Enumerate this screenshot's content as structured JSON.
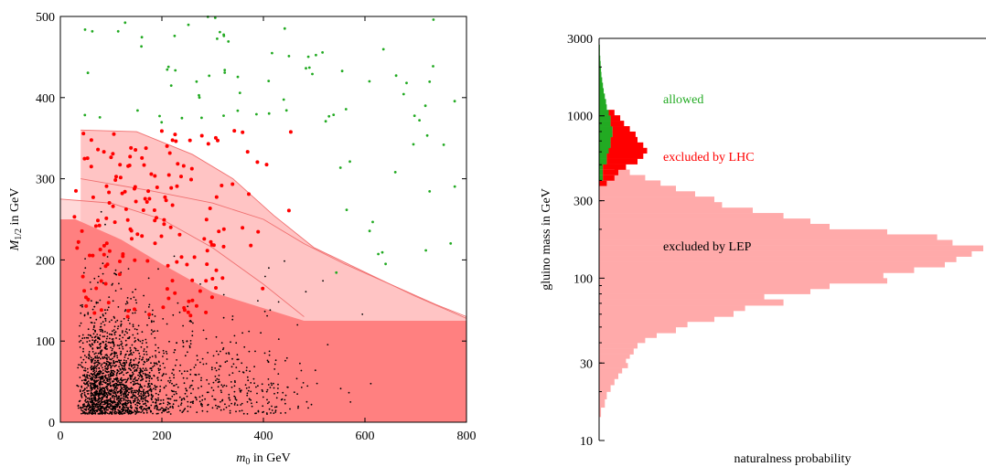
{
  "chart_data": [
    {
      "type": "scatter",
      "x_axis": {
        "label_italic": "m",
        "label_sub": "0",
        "label_rest": " in GeV",
        "range": [
          0,
          800
        ],
        "ticks": [
          0,
          200,
          400,
          600,
          800
        ]
      },
      "y_axis": {
        "label_italic": "M",
        "label_sub": "1/2",
        "label_rest": " in GeV",
        "range": [
          0,
          500
        ],
        "ticks": [
          0,
          100,
          200,
          300,
          400,
          500
        ]
      },
      "regions": [
        {
          "name": "LEP excluded band",
          "color": "#ff8080",
          "polygon": [
            [
              0,
              0
            ],
            [
              800,
              0
            ],
            [
              800,
              125
            ],
            [
              480,
              125
            ],
            [
              300,
              160
            ],
            [
              200,
              195
            ],
            [
              120,
              225
            ],
            [
              30,
              250
            ],
            [
              0,
              250
            ]
          ]
        },
        {
          "name": "LHC excluded region",
          "color": "#ffc4c4",
          "polygon": [
            [
              40,
              125
            ],
            [
              40,
              360
            ],
            [
              150,
              358
            ],
            [
              260,
              330
            ],
            [
              340,
              300
            ],
            [
              420,
              255
            ],
            [
              500,
              215
            ],
            [
              600,
              185
            ],
            [
              700,
              155
            ],
            [
              800,
              128
            ],
            [
              800,
              125
            ]
          ]
        },
        {
          "name": "Earlier bound",
          "color": "#ffd9d9",
          "polygon": [
            [
              0,
              125
            ],
            [
              0,
              275
            ],
            [
              150,
              270
            ],
            [
              300,
              230
            ],
            [
              420,
              180
            ],
            [
              500,
              135
            ],
            [
              510,
              125
            ]
          ]
        }
      ],
      "contours": [
        [
          [
            40,
            360
          ],
          [
            150,
            358
          ],
          [
            260,
            330
          ],
          [
            340,
            300
          ],
          [
            420,
            255
          ],
          [
            500,
            215
          ],
          [
            600,
            185
          ],
          [
            700,
            155
          ],
          [
            800,
            128
          ]
        ],
        [
          [
            40,
            300
          ],
          [
            180,
            285
          ],
          [
            300,
            270
          ],
          [
            400,
            250
          ],
          [
            480,
            220
          ],
          [
            560,
            195
          ],
          [
            650,
            170
          ],
          [
            740,
            145
          ],
          [
            800,
            130
          ]
        ],
        [
          [
            0,
            275
          ],
          [
            100,
            270
          ],
          [
            200,
            250
          ],
          [
            300,
            215
          ],
          [
            400,
            170
          ],
          [
            480,
            130
          ]
        ]
      ],
      "series": [
        {
          "name": "",
          "color": "#000000",
          "generator": "dense",
          "count": 2200,
          "seed": 7
        },
        {
          "name": "",
          "color": "#ff0000",
          "generator": "red",
          "count": 170,
          "seed": 11
        },
        {
          "name": "",
          "color": "#22aa22",
          "generator": "green",
          "count": 85,
          "seed": 19
        }
      ]
    },
    {
      "type": "histogram",
      "orientation": "horizontal",
      "x_axis": {
        "label": "naturalness probability"
      },
      "y_axis": {
        "label": "gluino mass in GeV",
        "scale": "log",
        "range": [
          10,
          3000
        ],
        "ticks": [
          10,
          30,
          100,
          300,
          1000,
          3000
        ]
      },
      "annotations": [
        {
          "text": "allowed",
          "color": "#22aa22"
        },
        {
          "text": "excluded by LHC",
          "color": "#ff0000"
        },
        {
          "text": "excluded by LEP",
          "color": "#000000"
        }
      ],
      "bins": {
        "edges_gev": [
          14,
          16,
          18,
          20,
          22,
          24,
          26,
          28,
          30,
          32,
          34,
          37,
          40,
          43,
          46,
          50,
          54,
          58,
          63,
          68,
          74,
          80,
          86,
          93,
          100,
          108,
          117,
          126,
          136,
          147,
          159,
          172,
          186,
          200,
          216,
          233,
          252,
          272,
          294,
          318,
          343,
          371,
          400,
          432,
          467,
          504,
          545,
          588,
          635,
          686,
          741,
          800,
          864,
          933,
          1008,
          1089,
          1176,
          1270,
          1372,
          1481,
          1600,
          1728,
          1866,
          2015,
          2177,
          2351,
          2539,
          2742,
          2961
        ],
        "lep_widths": [
          0.005,
          0.015,
          0.02,
          0.03,
          0.04,
          0.05,
          0.06,
          0.075,
          0.07,
          0.08,
          0.09,
          0.1,
          0.12,
          0.15,
          0.2,
          0.23,
          0.3,
          0.35,
          0.38,
          0.48,
          0.43,
          0.55,
          0.6,
          0.75,
          0.74,
          0.82,
          0.9,
          0.93,
          0.97,
          1.0,
          0.92,
          0.88,
          0.75,
          0.6,
          0.55,
          0.48,
          0.4,
          0.32,
          0.3,
          0.25,
          0.2,
          0.16,
          0.12,
          0.08,
          0.04,
          0,
          0,
          0,
          0,
          0,
          0,
          0,
          0,
          0,
          0,
          0,
          0,
          0,
          0,
          0,
          0,
          0,
          0,
          0,
          0,
          0,
          0,
          0
        ],
        "lhc_widths": [
          0,
          0,
          0,
          0,
          0,
          0,
          0,
          0,
          0,
          0,
          0,
          0,
          0,
          0,
          0,
          0,
          0,
          0,
          0,
          0,
          0,
          0,
          0,
          0,
          0,
          0,
          0,
          0,
          0,
          0,
          0,
          0,
          0,
          0,
          0,
          0,
          0,
          0,
          0,
          0,
          0,
          0.02,
          0.03,
          0.04,
          0.06,
          0.08,
          0.095,
          0.1,
          0.085,
          0.07,
          0.06,
          0.045,
          0.035,
          0.025,
          0.015,
          0,
          0,
          0,
          0,
          0,
          0,
          0,
          0,
          0,
          0,
          0,
          0,
          0
        ],
        "allowed_widths": [
          0,
          0,
          0,
          0,
          0,
          0,
          0,
          0,
          0,
          0,
          0,
          0,
          0,
          0,
          0,
          0,
          0,
          0,
          0,
          0,
          0,
          0,
          0,
          0,
          0,
          0,
          0,
          0,
          0,
          0,
          0,
          0,
          0,
          0,
          0,
          0,
          0,
          0,
          0,
          0,
          0,
          0,
          0.01,
          0.01,
          0.01,
          0.02,
          0.02,
          0.025,
          0.03,
          0.03,
          0.035,
          0.035,
          0.03,
          0.03,
          0.025,
          0.02,
          0.018,
          0.015,
          0.012,
          0.01,
          0.008,
          0.006,
          0.005,
          0.004,
          0.003,
          0.002,
          0.002,
          0.001
        ]
      }
    }
  ]
}
